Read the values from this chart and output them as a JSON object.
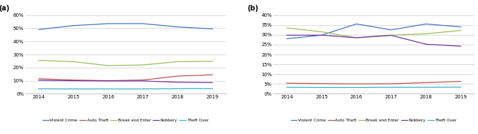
{
  "years": [
    2014,
    2015,
    2016,
    2017,
    2018,
    2019
  ],
  "panel_a": {
    "Violent Crime": [
      0.49,
      0.52,
      0.535,
      0.535,
      0.51,
      0.495
    ],
    "Auto Theft": [
      0.115,
      0.105,
      0.1,
      0.105,
      0.135,
      0.145
    ],
    "Break and Enter": [
      0.255,
      0.245,
      0.215,
      0.22,
      0.245,
      0.248
    ],
    "Robbery": [
      0.103,
      0.1,
      0.098,
      0.098,
      0.088,
      0.085
    ],
    "Theft Over": [
      0.038,
      0.037,
      0.037,
      0.037,
      0.04,
      0.04
    ]
  },
  "panel_b": {
    "Violent Crime": [
      0.28,
      0.298,
      0.355,
      0.325,
      0.355,
      0.34
    ],
    "Auto Theft": [
      0.054,
      0.052,
      0.05,
      0.051,
      0.057,
      0.063
    ],
    "Break and Enter": [
      0.335,
      0.315,
      0.285,
      0.298,
      0.305,
      0.322
    ],
    "Robbery": [
      0.298,
      0.298,
      0.285,
      0.297,
      0.252,
      0.242
    ],
    "Theft Over": [
      0.033,
      0.032,
      0.032,
      0.033,
      0.033,
      0.034
    ]
  },
  "colors": {
    "Violent Crime": "#4472c4",
    "Auto Theft": "#c0504d",
    "Break and Enter": "#9bbb59",
    "Robbery": "#7030a0",
    "Theft Over": "#31b0c8"
  },
  "ylim_a": [
    0,
    0.63
  ],
  "ylim_b": [
    0,
    0.42
  ],
  "yticks_a": [
    0.0,
    0.1,
    0.2,
    0.3,
    0.4,
    0.5,
    0.6
  ],
  "yticks_b": [
    0.0,
    0.05,
    0.1,
    0.15,
    0.2,
    0.25,
    0.3,
    0.35,
    0.4
  ],
  "label_a": "(a)",
  "label_b": "(b)"
}
